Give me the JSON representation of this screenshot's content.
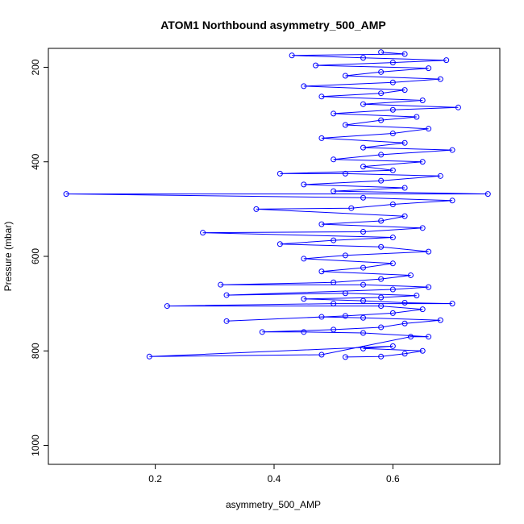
{
  "chart_data": {
    "type": "scatter",
    "title": "ATOM1 Northbound asymmetry_500_AMP",
    "xlabel": "asymmetry_500_AMP",
    "ylabel": "Pressure (mbar)",
    "xlim": [
      0.02,
      0.78
    ],
    "ylim": [
      1040,
      160
    ],
    "y_reversed": true,
    "xticks": [
      0.2,
      0.4,
      0.6
    ],
    "xtick_labels": [
      "0.2",
      "0.4",
      "0.6"
    ],
    "yticks": [
      200,
      400,
      600,
      800,
      1000
    ],
    "ytick_labels": [
      "200",
      "400",
      "600",
      "800",
      "1000"
    ],
    "grid": false,
    "legend": "none",
    "series_color": "#0000ff",
    "series": [
      {
        "points": [
          [
            0.52,
            813
          ],
          [
            0.58,
            812
          ],
          [
            0.62,
            806
          ],
          [
            0.65,
            800
          ],
          [
            0.55,
            795
          ],
          [
            0.6,
            790
          ],
          [
            0.19,
            812
          ],
          [
            0.48,
            808
          ],
          [
            0.63,
            770
          ],
          [
            0.66,
            770
          ],
          [
            0.55,
            762
          ],
          [
            0.45,
            760
          ],
          [
            0.38,
            760
          ],
          [
            0.5,
            755
          ],
          [
            0.58,
            750
          ],
          [
            0.62,
            742
          ],
          [
            0.68,
            735
          ],
          [
            0.55,
            730
          ],
          [
            0.48,
            728
          ],
          [
            0.32,
            737
          ],
          [
            0.52,
            726
          ],
          [
            0.6,
            720
          ],
          [
            0.65,
            712
          ],
          [
            0.58,
            705
          ],
          [
            0.22,
            705
          ],
          [
            0.5,
            700
          ],
          [
            0.7,
            700
          ],
          [
            0.62,
            698
          ],
          [
            0.55,
            694
          ],
          [
            0.45,
            690
          ],
          [
            0.58,
            687
          ],
          [
            0.64,
            683
          ],
          [
            0.52,
            678
          ],
          [
            0.32,
            682
          ],
          [
            0.6,
            670
          ],
          [
            0.66,
            665
          ],
          [
            0.55,
            660
          ],
          [
            0.31,
            660
          ],
          [
            0.5,
            655
          ],
          [
            0.58,
            648
          ],
          [
            0.63,
            640
          ],
          [
            0.48,
            632
          ],
          [
            0.55,
            624
          ],
          [
            0.6,
            615
          ],
          [
            0.45,
            605
          ],
          [
            0.52,
            598
          ],
          [
            0.66,
            590
          ],
          [
            0.58,
            580
          ],
          [
            0.41,
            574
          ],
          [
            0.5,
            566
          ],
          [
            0.6,
            560
          ],
          [
            0.28,
            550
          ],
          [
            0.55,
            548
          ],
          [
            0.65,
            540
          ],
          [
            0.48,
            532
          ],
          [
            0.58,
            525
          ],
          [
            0.62,
            515
          ],
          [
            0.37,
            500
          ],
          [
            0.53,
            498
          ],
          [
            0.6,
            490
          ],
          [
            0.7,
            482
          ],
          [
            0.55,
            476
          ],
          [
            0.05,
            468
          ],
          [
            0.76,
            468
          ],
          [
            0.5,
            462
          ],
          [
            0.62,
            455
          ],
          [
            0.45,
            448
          ],
          [
            0.58,
            440
          ],
          [
            0.68,
            430
          ],
          [
            0.52,
            425
          ],
          [
            0.41,
            425
          ],
          [
            0.6,
            418
          ],
          [
            0.55,
            410
          ],
          [
            0.65,
            400
          ],
          [
            0.5,
            395
          ],
          [
            0.58,
            385
          ],
          [
            0.7,
            375
          ],
          [
            0.55,
            370
          ],
          [
            0.62,
            360
          ],
          [
            0.48,
            350
          ],
          [
            0.6,
            340
          ],
          [
            0.66,
            330
          ],
          [
            0.52,
            322
          ],
          [
            0.58,
            312
          ],
          [
            0.64,
            305
          ],
          [
            0.5,
            298
          ],
          [
            0.6,
            290
          ],
          [
            0.71,
            285
          ],
          [
            0.55,
            278
          ],
          [
            0.65,
            270
          ],
          [
            0.48,
            262
          ],
          [
            0.58,
            255
          ],
          [
            0.62,
            248
          ],
          [
            0.45,
            240
          ],
          [
            0.6,
            232
          ],
          [
            0.68,
            225
          ],
          [
            0.52,
            218
          ],
          [
            0.58,
            210
          ],
          [
            0.66,
            202
          ],
          [
            0.47,
            196
          ],
          [
            0.6,
            190
          ],
          [
            0.69,
            185
          ],
          [
            0.55,
            180
          ],
          [
            0.43,
            175
          ],
          [
            0.62,
            172
          ],
          [
            0.58,
            168
          ]
        ]
      }
    ]
  }
}
